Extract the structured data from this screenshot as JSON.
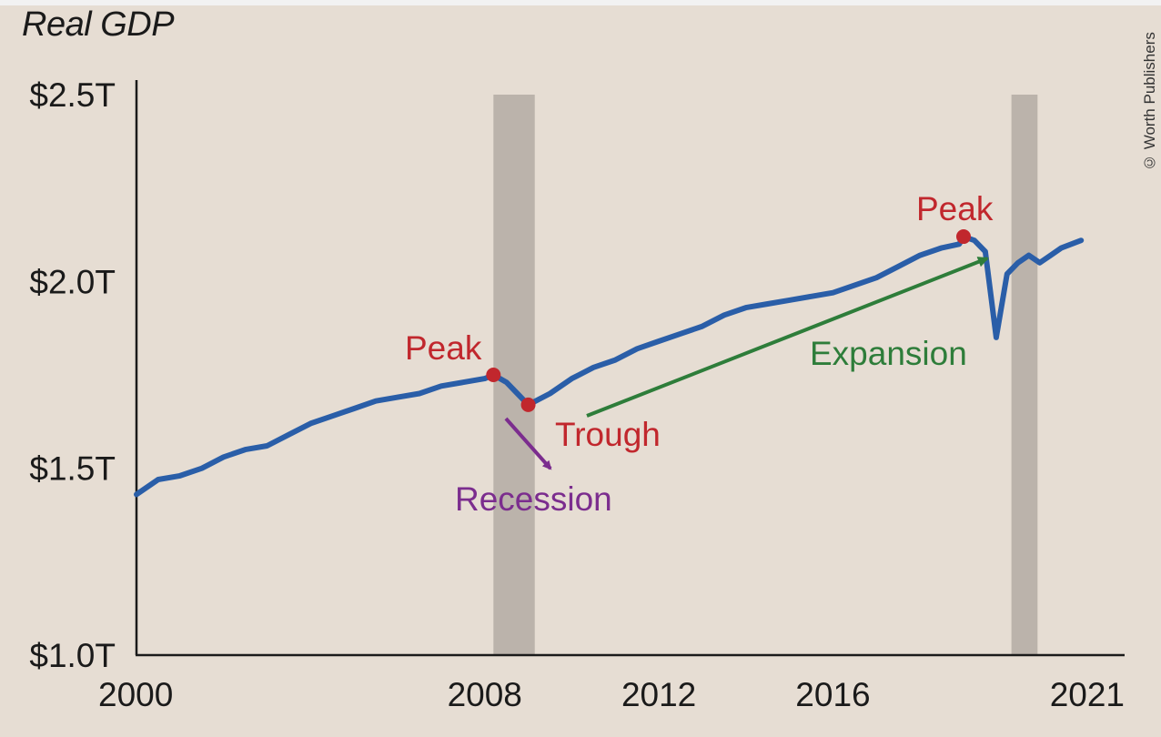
{
  "credit": "© Worth Publishers",
  "colors": {
    "background": "#e6ddd3",
    "line": "#2a5ea8",
    "recession_band": "#bbb3ab",
    "peak_trough": "#c1272d",
    "recession": "#7b2d8e",
    "expansion": "#2e7d3a"
  },
  "chart_data": {
    "type": "line",
    "title": "Real GDP",
    "xlabel": "",
    "ylabel": "",
    "xlim": [
      2000,
      2022.7
    ],
    "ylim": [
      1.0,
      2.5
    ],
    "x_ticks": [
      {
        "value": 2000,
        "label": "2000"
      },
      {
        "value": 2008,
        "label": "2008"
      },
      {
        "value": 2012,
        "label": "2012"
      },
      {
        "value": 2016,
        "label": "2016"
      },
      {
        "value": 2021,
        "label": "2021"
      }
    ],
    "y_ticks": [
      {
        "value": 1.0,
        "label": "$1.0T"
      },
      {
        "value": 1.5,
        "label": "$1.5T"
      },
      {
        "value": 2.0,
        "label": "$2.0T"
      },
      {
        "value": 2.5,
        "label": "$2.5T"
      }
    ],
    "recession_bands": [
      {
        "start": 2008.2,
        "end": 2009.15
      },
      {
        "start": 2020.1,
        "end": 2020.7
      }
    ],
    "series": [
      {
        "x": [
          2000.0,
          2000.5,
          2001.0,
          2001.5,
          2002.0,
          2002.5,
          2003.0,
          2003.5,
          2004.0,
          2004.5,
          2005.0,
          2005.5,
          2006.0,
          2006.5,
          2007.0,
          2007.5,
          2008.0,
          2008.2,
          2008.5,
          2008.75,
          2009.0,
          2009.5,
          2010.0,
          2010.5,
          2011.0,
          2011.5,
          2012.0,
          2012.5,
          2013.0,
          2013.5,
          2014.0,
          2014.5,
          2015.0,
          2015.5,
          2016.0,
          2016.5,
          2017.0,
          2017.5,
          2018.0,
          2018.5,
          2018.9,
          2019.0,
          2019.25,
          2019.5,
          2019.75,
          2020.0,
          2020.25,
          2020.5,
          2020.75,
          2021.0,
          2021.25,
          2021.7
        ],
        "values": [
          1.43,
          1.47,
          1.48,
          1.5,
          1.53,
          1.55,
          1.56,
          1.59,
          1.62,
          1.64,
          1.66,
          1.68,
          1.69,
          1.7,
          1.72,
          1.73,
          1.74,
          1.75,
          1.73,
          1.7,
          1.67,
          1.7,
          1.74,
          1.77,
          1.79,
          1.82,
          1.84,
          1.86,
          1.88,
          1.91,
          1.93,
          1.94,
          1.95,
          1.96,
          1.97,
          1.99,
          2.01,
          2.04,
          2.07,
          2.09,
          2.1,
          2.12,
          2.11,
          2.08,
          1.85,
          2.02,
          2.05,
          2.07,
          2.05,
          2.07,
          2.09,
          2.11
        ]
      }
    ],
    "points": [
      {
        "x": 2008.2,
        "y": 1.75
      },
      {
        "x": 2009.0,
        "y": 1.67
      },
      {
        "x": 2019.0,
        "y": 2.12
      }
    ],
    "annotations": {
      "peak1": "Peak",
      "trough": "Trough",
      "recession": "Recession",
      "expansion": "Expansion",
      "peak2": "Peak"
    }
  }
}
